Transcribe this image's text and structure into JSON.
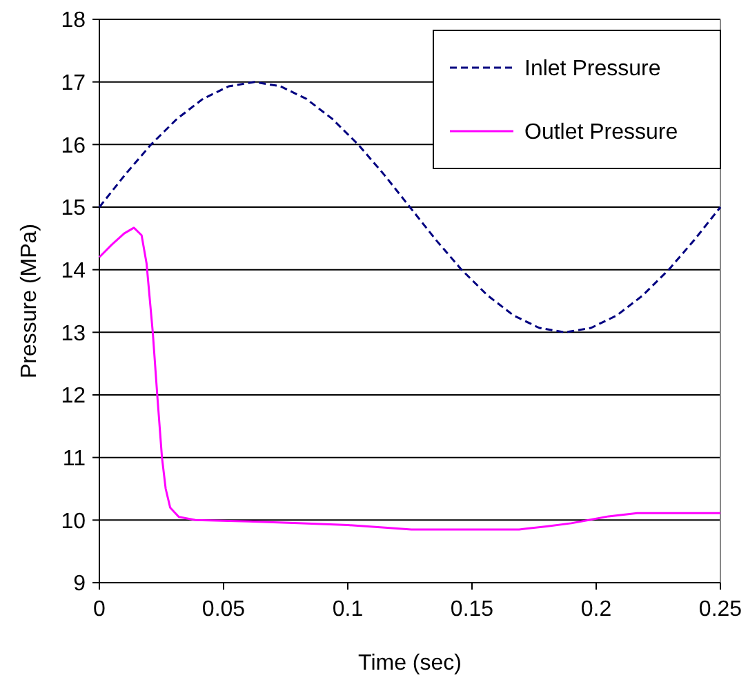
{
  "chart_data": {
    "type": "line",
    "xlabel": "Time (sec)",
    "ylabel": "Pressure (MPa)",
    "xlim": [
      0,
      0.25
    ],
    "ylim": [
      9,
      18
    ],
    "xticks": [
      0,
      0.05,
      0.1,
      0.15,
      0.2,
      0.25
    ],
    "yticks": [
      9,
      10,
      11,
      12,
      13,
      14,
      15,
      16,
      17,
      18
    ],
    "grid": "y",
    "legend": "top right",
    "marker": "none",
    "series": [
      {
        "name": "Inlet Pressure",
        "color": "#000080",
        "line_style": "dashed",
        "x": [
          0,
          0.0104,
          0.0208,
          0.03125,
          0.0417,
          0.0521,
          0.0625,
          0.0729,
          0.0833,
          0.09375,
          0.1042,
          0.1146,
          0.125,
          0.1354,
          0.1458,
          0.15625,
          0.1667,
          0.1771,
          0.1875,
          0.1979,
          0.2083,
          0.21875,
          0.2292,
          0.2396,
          0.25
        ],
        "values": [
          15,
          15.52,
          16,
          16.41,
          16.73,
          16.93,
          17,
          16.93,
          16.73,
          16.41,
          16,
          15.52,
          15,
          14.48,
          14,
          13.59,
          13.27,
          13.07,
          13,
          13.07,
          13.27,
          13.59,
          14,
          14.48,
          15
        ]
      },
      {
        "name": "Outlet Pressure",
        "color": "#ff00ff",
        "line_style": "solid",
        "x": [
          0,
          0.005,
          0.01,
          0.0139,
          0.017,
          0.019,
          0.0215,
          0.0233,
          0.0252,
          0.0267,
          0.0285,
          0.032,
          0.0387,
          0.06,
          0.08,
          0.1,
          0.115,
          0.1256,
          0.15,
          0.169,
          0.18,
          0.19,
          0.197,
          0.205,
          0.2165,
          0.25
        ],
        "values": [
          14.2,
          14.4,
          14.58,
          14.67,
          14.55,
          14.1,
          13,
          12,
          11,
          10.5,
          10.2,
          10.05,
          10,
          9.98,
          9.95,
          9.92,
          9.88,
          9.85,
          9.85,
          9.85,
          9.9,
          9.95,
          10,
          10.06,
          10.11,
          10.11
        ]
      }
    ]
  }
}
